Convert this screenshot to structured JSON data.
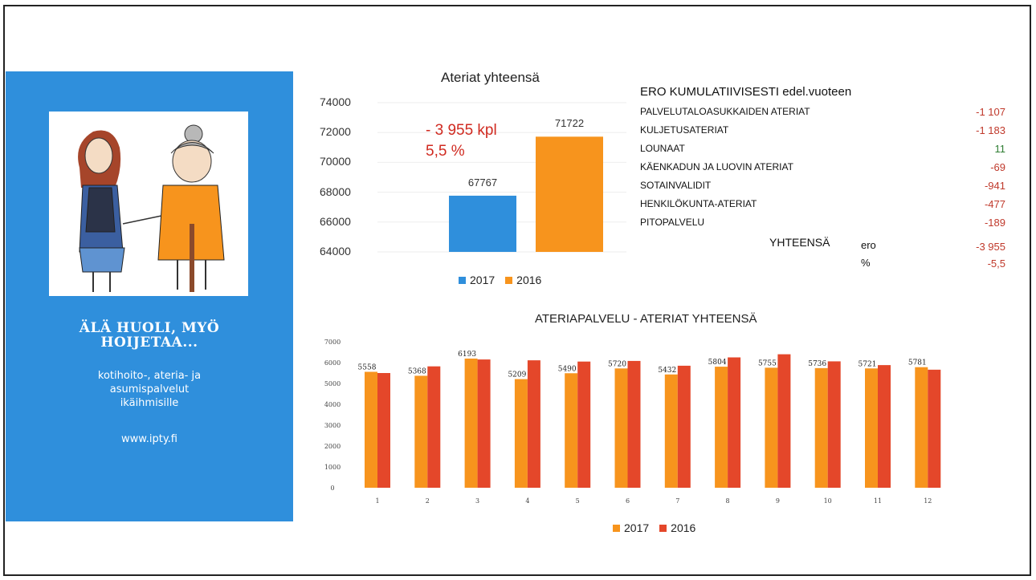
{
  "left_panel": {
    "slogan_line1": "ÄLÄ HUOLI, MYÖ",
    "slogan_line2": "HOIJETAA...",
    "services_line1": "kotihoito-, ateria- ja",
    "services_line2": "asumispalvelut",
    "services_line3": "ikäihmisille",
    "website": "www.ipty.fi",
    "accent_color": "#2f8fdc"
  },
  "difference": {
    "amount": "- 3 955 kpl",
    "percent": "5,5 %"
  },
  "table": {
    "title": "ERO KUMULATIIVISESTI edel.vuoteen",
    "rows": [
      {
        "label": "PALVELUTALOASUKKAIDEN ATERIAT",
        "value": "-1 107"
      },
      {
        "label": "KULJETUSATERIAT",
        "value": "-1 183"
      },
      {
        "label": "LOUNAAT",
        "value": "11"
      },
      {
        "label": "KÄENKADUN JA LUOVIN ATERIAT",
        "value": "-69"
      },
      {
        "label": "SOTAINVALIDIT",
        "value": "-941"
      },
      {
        "label": "HENKILÖKUNTA-ATERIAT",
        "value": "-477"
      },
      {
        "label": "PITOPALVELU",
        "value": "-189"
      }
    ],
    "total_label": "YHTEENSÄ",
    "ero_label": "ero",
    "pct_label": "%",
    "total_value": "-3 955",
    "total_pct": "-5,5"
  },
  "chart_data": [
    {
      "type": "bar",
      "title": "Ateriat yhteensä",
      "categories": [
        ""
      ],
      "series": [
        {
          "name": "2017",
          "values": [
            67767
          ],
          "color": "#2f8fdc"
        },
        {
          "name": "2016",
          "values": [
            71722
          ],
          "color": "#f7941d"
        }
      ],
      "ylim": [
        64000,
        74000
      ],
      "yticks": [
        "74000",
        "72000",
        "70000",
        "68000",
        "66000",
        "64000"
      ],
      "data_labels": [
        "67767",
        "71722"
      ],
      "legend": "bottom"
    },
    {
      "type": "bar",
      "title": "ATERIAPALVELU - ATERIAT YHTEENSÄ",
      "categories": [
        "1",
        "2",
        "3",
        "4",
        "5",
        "6",
        "7",
        "8",
        "9",
        "10",
        "11",
        "12"
      ],
      "series": [
        {
          "name": "2017",
          "values": [
            5558,
            5368,
            6193,
            5209,
            5490,
            5720,
            5432,
            5804,
            5755,
            5736,
            5721,
            5781
          ],
          "color": "#f7941d"
        },
        {
          "name": "2016",
          "values": [
            5500,
            5820,
            6150,
            6110,
            6050,
            6080,
            5850,
            6250,
            6400,
            6060,
            5880,
            5660
          ],
          "color": "#e4472a"
        }
      ],
      "ylim": [
        0,
        7000
      ],
      "yticks": [
        "7000",
        "6000",
        "5000",
        "4000",
        "3000",
        "2000",
        "1000",
        "0"
      ],
      "data_labels": [
        "5558",
        "5368",
        "6193",
        "5209",
        "5490",
        "5720",
        "5432",
        "5804",
        "5755",
        "5736",
        "5721",
        "5781"
      ],
      "legend": "bottom"
    }
  ]
}
